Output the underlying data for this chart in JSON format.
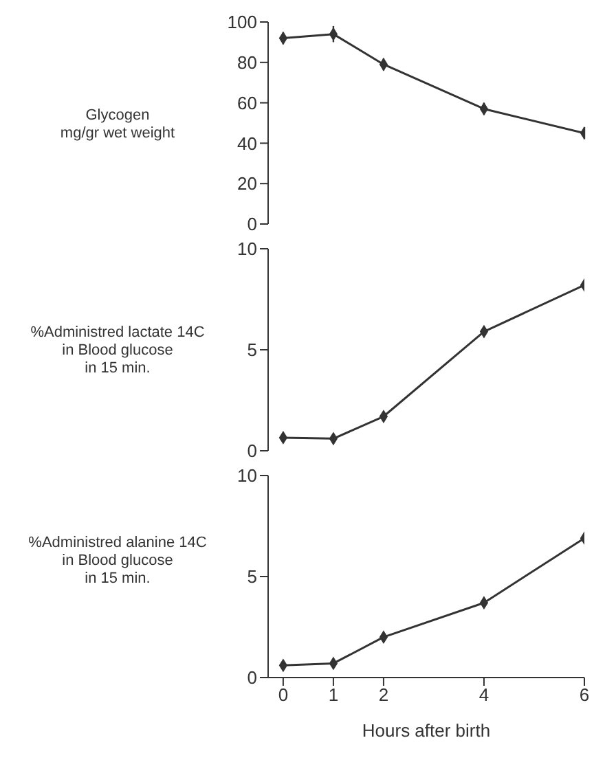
{
  "chart_data": [
    {
      "type": "line",
      "ylabel": "Glycogen\nmg/gr wet weight",
      "x": [
        0,
        1,
        2,
        4,
        6
      ],
      "series": [
        {
          "color": "#333333",
          "values": [
            92,
            94,
            79,
            57,
            45
          ],
          "errors": [
            3,
            4,
            3,
            3,
            3
          ]
        }
      ],
      "xlim": [
        -0.3,
        6
      ],
      "ylim": [
        0,
        100
      ],
      "yticks": [
        0,
        20,
        40,
        60,
        80,
        100
      ],
      "tick_labels": "y",
      "marker": "diamond",
      "grid": false,
      "legend": false
    },
    {
      "type": "line",
      "ylabel": "%Administred lactate 14C\nin Blood glucose\nin 15 min.",
      "x": [
        0,
        1,
        2,
        4,
        6
      ],
      "series": [
        {
          "color": "#333333",
          "values": [
            0.65,
            0.6,
            1.7,
            5.9,
            8.2
          ]
        }
      ],
      "xlim": [
        -0.3,
        6
      ],
      "ylim": [
        0,
        10
      ],
      "yticks": [
        0,
        5,
        10
      ],
      "tick_labels": "y",
      "marker": "diamond",
      "grid": false,
      "legend": false
    },
    {
      "type": "line",
      "ylabel": "%Administred alanine 14C\nin Blood glucose\nin 15 min.",
      "xlabel": "Hours after birth",
      "x": [
        0,
        1,
        2,
        4,
        6
      ],
      "series": [
        {
          "color": "#333333",
          "values": [
            0.6,
            0.7,
            2.0,
            3.7,
            6.9
          ]
        }
      ],
      "xlim": [
        -0.3,
        6
      ],
      "xticks": [
        0,
        1,
        2,
        4,
        6
      ],
      "ylim": [
        0,
        10
      ],
      "yticks": [
        0,
        5,
        10
      ],
      "marker": "diamond",
      "grid": false,
      "legend": false
    }
  ]
}
